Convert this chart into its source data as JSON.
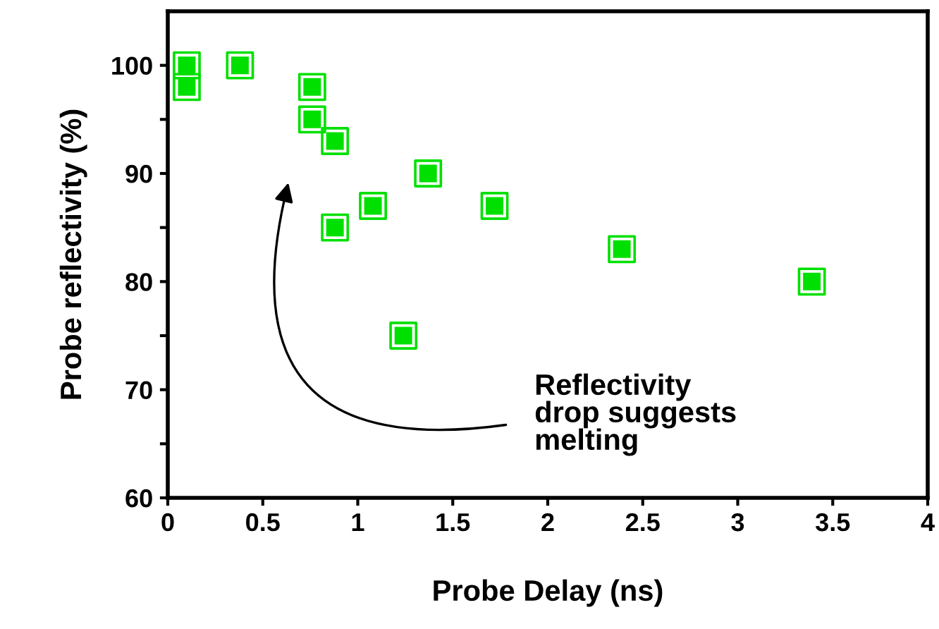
{
  "chart_data": {
    "type": "scatter",
    "xlabel": "Probe Delay (ns)",
    "ylabel": "Probe reflectivity (%)",
    "x": [
      0.1,
      0.1,
      0.38,
      0.76,
      0.76,
      0.88,
      0.88,
      1.08,
      1.24,
      1.37,
      1.72,
      2.39,
      3.39
    ],
    "series": [
      {
        "color": "#00e000",
        "values": [
          100,
          98,
          100,
          98,
          95,
          93,
          85,
          87,
          75,
          90,
          87,
          83,
          80
        ]
      }
    ],
    "marker": "square",
    "xlim": [
      0,
      4
    ],
    "xticks": [
      0,
      0.5,
      1,
      1.5,
      2,
      2.5,
      3,
      3.5,
      4
    ],
    "ylim": [
      60,
      105
    ],
    "yticks": [
      60,
      {
        "value": 65,
        "label": null
      },
      70,
      {
        "value": 75,
        "label": null
      },
      80,
      {
        "value": 85,
        "label": null
      },
      90,
      {
        "value": 95,
        "label": null
      },
      100
    ],
    "grid": false,
    "legend": false,
    "annotations": [
      "Reflectivity\ndrop suggests\nmelting"
    ]
  }
}
